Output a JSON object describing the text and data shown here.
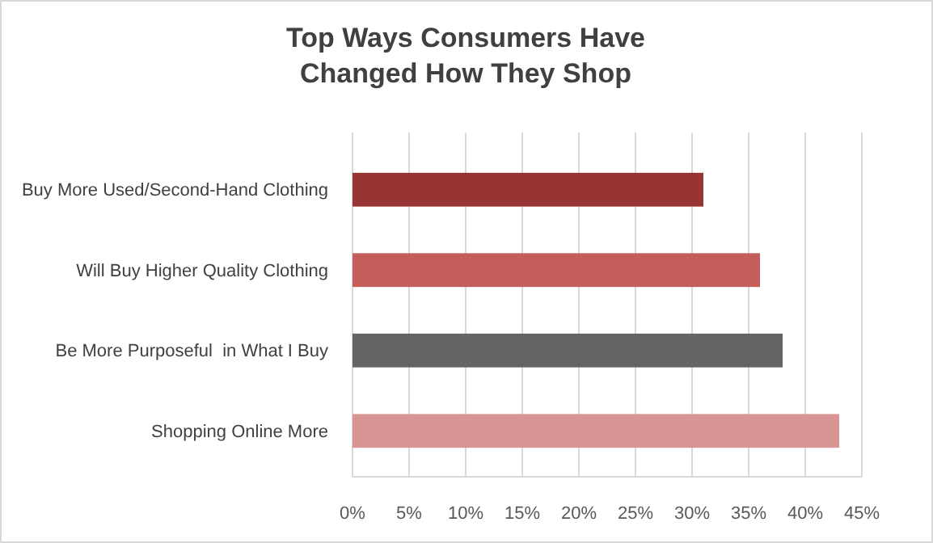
{
  "chart_data": {
    "type": "bar",
    "orientation": "horizontal",
    "title": "Top Ways Consumers Have Changed How They Shop",
    "categories": [
      "Buy More Used/Second-Hand Clothing",
      "Will Buy Higher Quality Clothing",
      "Be More Purposeful  in What I Buy",
      "Shopping Online More"
    ],
    "values": [
      31,
      36,
      38,
      43
    ],
    "colors": [
      "#973535",
      "#c55d5b",
      "#646464",
      "#d99594"
    ],
    "xlim": [
      0,
      45
    ],
    "xticks": [
      {
        "value": 0,
        "label": "0%"
      },
      {
        "value": 5,
        "label": "5%"
      },
      {
        "value": 10,
        "label": "10%"
      },
      {
        "value": 15,
        "label": "15%"
      },
      {
        "value": 20,
        "label": "20%"
      },
      {
        "value": 25,
        "label": "25%"
      },
      {
        "value": 30,
        "label": "30%"
      },
      {
        "value": 35,
        "label": "35%"
      },
      {
        "value": 40,
        "label": "40%"
      },
      {
        "value": 45,
        "label": "45%"
      }
    ],
    "grid": "x"
  }
}
